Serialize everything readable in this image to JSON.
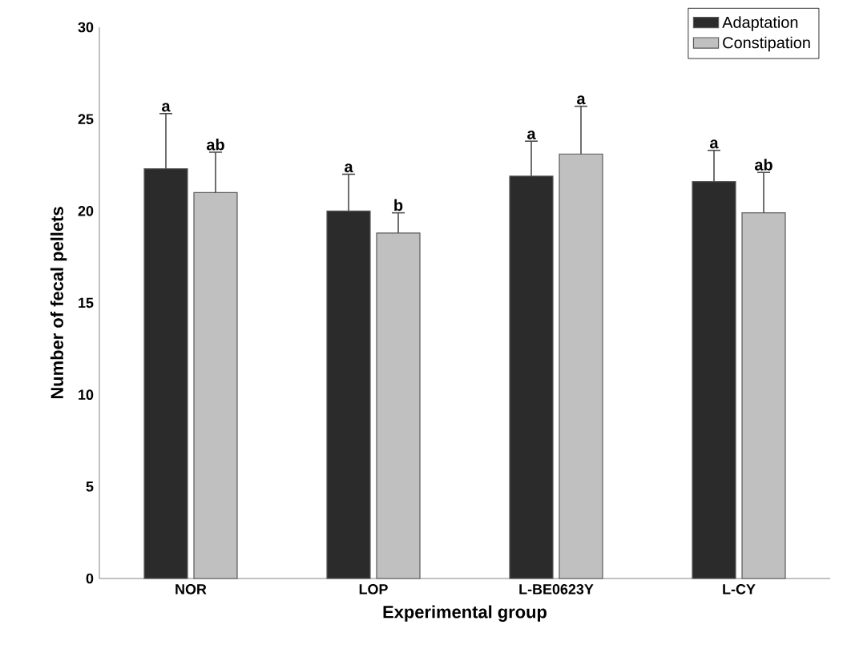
{
  "chart_data": {
    "type": "bar",
    "xlabel": "Experimental group",
    "ylabel": "Number of fecal pellets",
    "categories": [
      "NOR",
      "LOP",
      "L-BE0623Y",
      "L-CY"
    ],
    "series": [
      {
        "name": "Adaptation",
        "color": "#2b2b2b",
        "values": [
          22.3,
          20.0,
          21.9,
          21.6
        ],
        "errors": [
          [
            22.3,
            25.3
          ],
          [
            20.0,
            22.0
          ],
          [
            21.9,
            23.8
          ],
          [
            21.6,
            23.3
          ]
        ]
      },
      {
        "name": "Constipation",
        "color": "#c0c0c0",
        "values": [
          21.0,
          18.8,
          23.1,
          19.9
        ],
        "errors": [
          [
            21.0,
            23.2
          ],
          [
            18.8,
            19.9
          ],
          [
            23.1,
            25.7
          ],
          [
            19.9,
            22.1
          ]
        ]
      }
    ],
    "ylim": [
      0,
      30
    ],
    "yticks": [
      0,
      5,
      10,
      15,
      20,
      25,
      30
    ],
    "legend": "top right",
    "annotations": [
      "a",
      "ab",
      "a",
      "b",
      "a",
      "a",
      "a",
      "ab"
    ]
  }
}
